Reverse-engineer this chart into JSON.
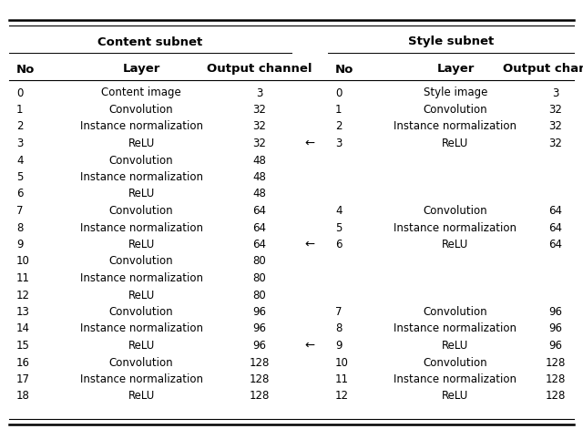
{
  "content_header": "Content subnet",
  "style_header": "Style subnet",
  "content_rows": [
    [
      "0",
      "Content image",
      "3"
    ],
    [
      "1",
      "Convolution",
      "32"
    ],
    [
      "2",
      "Instance normalization",
      "32"
    ],
    [
      "3",
      "ReLU",
      "32"
    ],
    [
      "4",
      "Convolution",
      "48"
    ],
    [
      "5",
      "Instance normalization",
      "48"
    ],
    [
      "6",
      "ReLU",
      "48"
    ],
    [
      "7",
      "Convolution",
      "64"
    ],
    [
      "8",
      "Instance normalization",
      "64"
    ],
    [
      "9",
      "ReLU",
      "64"
    ],
    [
      "10",
      "Convolution",
      "80"
    ],
    [
      "11",
      "Instance normalization",
      "80"
    ],
    [
      "12",
      "ReLU",
      "80"
    ],
    [
      "13",
      "Convolution",
      "96"
    ],
    [
      "14",
      "Instance normalization",
      "96"
    ],
    [
      "15",
      "ReLU",
      "96"
    ],
    [
      "16",
      "Convolution",
      "128"
    ],
    [
      "17",
      "Instance normalization",
      "128"
    ],
    [
      "18",
      "ReLU",
      "128"
    ]
  ],
  "style_rows": [
    [
      "0",
      "Style image",
      "3"
    ],
    [
      "1",
      "Convolution",
      "32"
    ],
    [
      "2",
      "Instance normalization",
      "32"
    ],
    [
      "3",
      "ReLU",
      "32"
    ],
    [
      "",
      "",
      ""
    ],
    [
      "",
      "",
      ""
    ],
    [
      "",
      "",
      ""
    ],
    [
      "4",
      "Convolution",
      "64"
    ],
    [
      "5",
      "Instance normalization",
      "64"
    ],
    [
      "6",
      "ReLU",
      "64"
    ],
    [
      "",
      "",
      ""
    ],
    [
      "",
      "",
      ""
    ],
    [
      "",
      "",
      ""
    ],
    [
      "7",
      "Convolution",
      "96"
    ],
    [
      "8",
      "Instance normalization",
      "96"
    ],
    [
      "9",
      "ReLU",
      "96"
    ],
    [
      "10",
      "Convolution",
      "128"
    ],
    [
      "11",
      "Instance normalization",
      "128"
    ],
    [
      "12",
      "ReLU",
      "128"
    ]
  ],
  "arrow_rows": [
    3,
    9,
    15
  ],
  "bg_color": "#ffffff",
  "text_color": "#000000",
  "fontsize": 8.5,
  "header_fontsize": 9.5
}
